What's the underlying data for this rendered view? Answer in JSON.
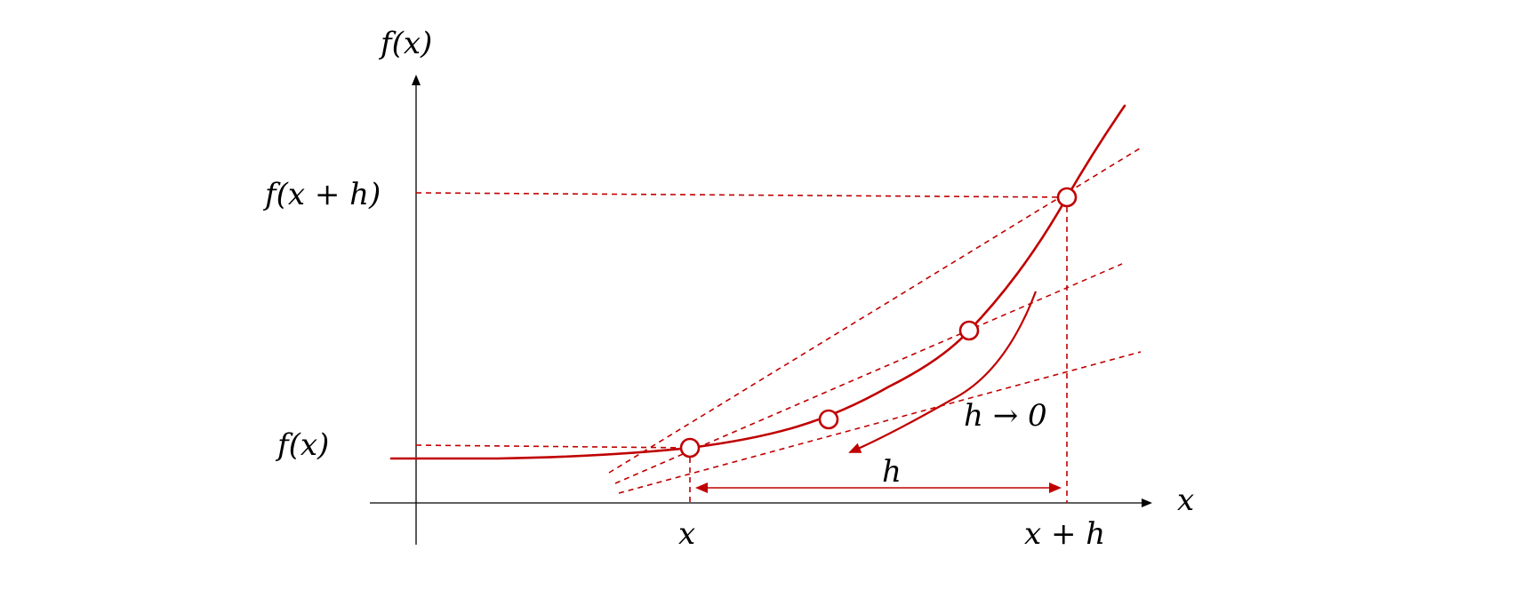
{
  "labels": {
    "y_axis": "f(x)",
    "x_axis": "x",
    "y_tick_fx": "f(x)",
    "y_tick_fxh": "f(x + h)",
    "x_tick_x": "x",
    "x_tick_xh": "x + h",
    "h_span": "h",
    "limit": "h → 0"
  },
  "colors": {
    "accent": "#c00000",
    "axis": "#000000",
    "background": "#ffffff"
  }
}
